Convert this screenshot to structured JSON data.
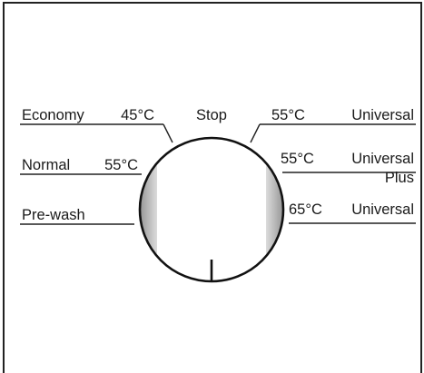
{
  "dial": {
    "top_label": "Stop",
    "left_options": [
      {
        "name": "Economy",
        "temp": "45°C"
      },
      {
        "name": "Normal",
        "temp": "55°C"
      },
      {
        "name": "Pre-wash",
        "temp": ""
      }
    ],
    "right_options": [
      {
        "temp": "55°C",
        "name": "Universal",
        "sub": ""
      },
      {
        "temp": "55°C",
        "name": "Universal",
        "sub": "Plus"
      },
      {
        "temp": "65°C",
        "name": "Universal",
        "sub": ""
      }
    ],
    "pointer_position": "bottom"
  }
}
